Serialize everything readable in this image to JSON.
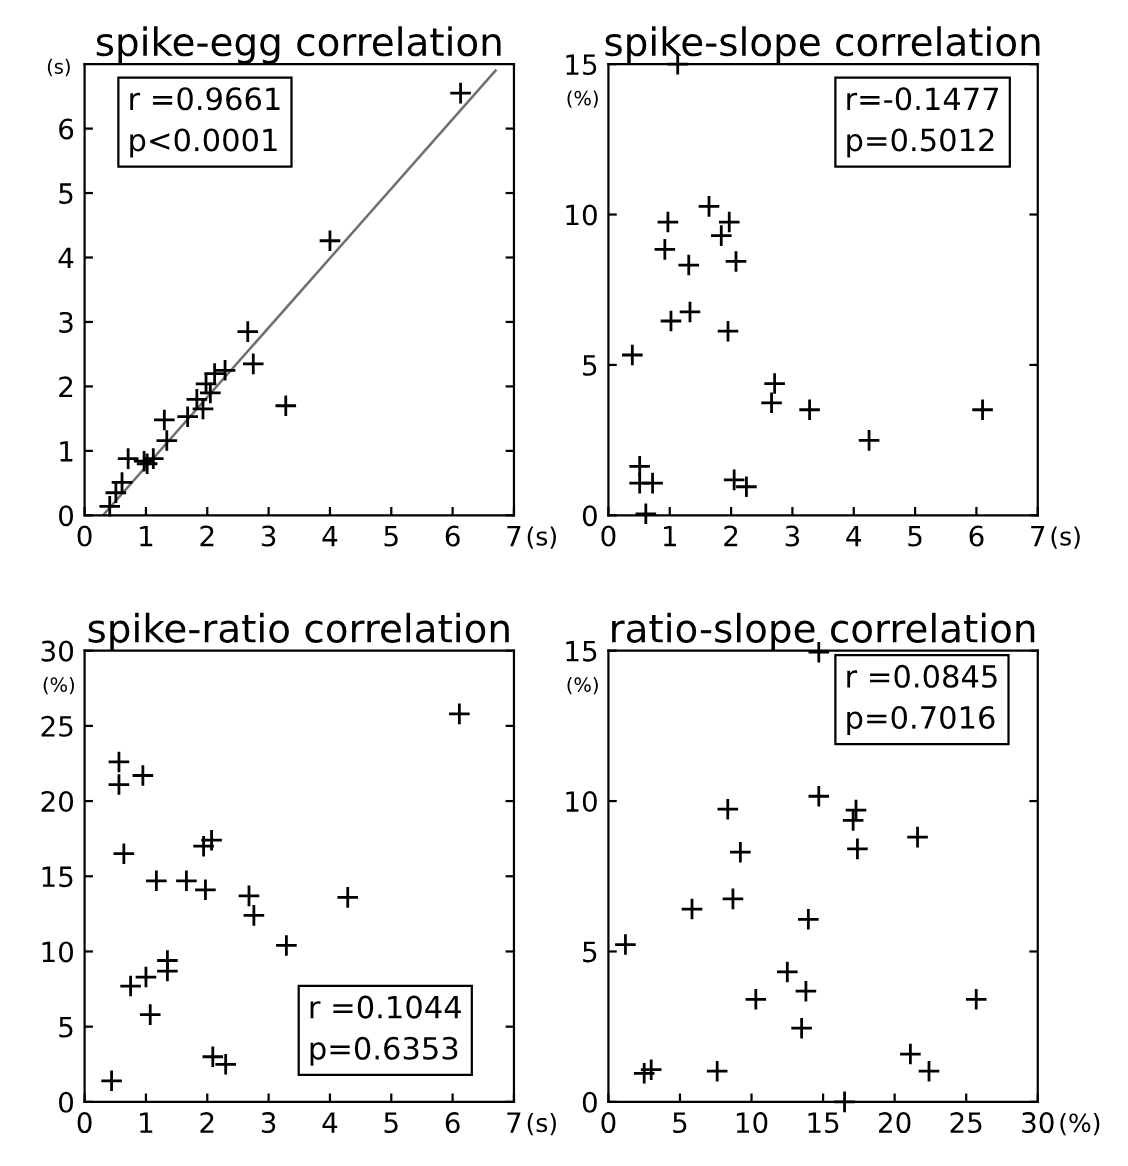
{
  "chart_data": [
    {
      "type": "scatter",
      "title": "spike-egg correlation",
      "ylabel": "(s)",
      "xlabel": "(s)",
      "marker": "cross",
      "grid": false,
      "xlim": [
        0,
        7
      ],
      "xticks": [
        0,
        1,
        2,
        3,
        4,
        5,
        6,
        7
      ],
      "ylim": [
        0,
        7
      ],
      "yticks": [
        0,
        1,
        2,
        3,
        4,
        5,
        6
      ],
      "annotations": [
        "r =0.9661\np<0.0001"
      ],
      "series": [
        {
          "color": "#000000",
          "x": [
            0.41,
            0.51,
            0.61,
            0.71,
            0.97,
            1.02,
            1.12,
            1.3,
            1.34,
            1.68,
            1.83,
            1.93,
            1.98,
            2.05,
            2.12,
            2.29,
            2.66,
            2.75,
            3.28,
            4.0,
            6.13
          ],
          "values": [
            0.14,
            0.35,
            0.51,
            0.88,
            0.84,
            0.8,
            0.88,
            1.48,
            1.16,
            1.53,
            1.8,
            1.65,
            2.04,
            1.9,
            2.2,
            2.25,
            2.85,
            2.35,
            1.7,
            4.26,
            6.55
          ]
        },
        {
          "type": "line",
          "color": "#707070",
          "marker": "none",
          "x": [
            0.3,
            6.7
          ],
          "values": [
            0,
            6.9
          ]
        }
      ]
    },
    {
      "type": "scatter",
      "title": "spike-slope correlation",
      "ylabel": "(%)",
      "xlabel": "(s)",
      "marker": "cross",
      "grid": false,
      "xlim": [
        0,
        7
      ],
      "xticks": [
        0,
        1,
        2,
        3,
        4,
        5,
        6,
        7
      ],
      "ylim": [
        0,
        15
      ],
      "yticks": [
        0,
        5,
        10,
        15
      ],
      "annotations": [
        "r=-0.1477\np=0.5012"
      ],
      "series": [
        {
          "color": "#000000",
          "x": [
            1.13,
            0.39,
            0.51,
            0.51,
            0.72,
            0.61,
            0.97,
            0.92,
            1.31,
            1.02,
            1.33,
            1.64,
            1.84,
            1.97,
            2.08,
            1.95,
            2.05,
            2.25,
            2.66,
            2.71,
            3.28,
            4.25,
            6.1
          ],
          "values": [
            15.0,
            5.33,
            1.63,
            1.07,
            1.07,
            0.05,
            9.75,
            8.84,
            8.32,
            6.46,
            6.76,
            10.27,
            9.3,
            9.75,
            8.44,
            6.12,
            1.18,
            0.95,
            3.74,
            4.38,
            3.51,
            2.49,
            3.51
          ]
        }
      ]
    },
    {
      "type": "scatter",
      "title": "spike-ratio correlation",
      "ylabel": "(%)",
      "xlabel": "(s)",
      "marker": "cross",
      "grid": false,
      "xlim": [
        0,
        7
      ],
      "xticks": [
        0,
        1,
        2,
        3,
        4,
        5,
        6,
        7
      ],
      "ylim": [
        0,
        30
      ],
      "yticks": [
        0,
        5,
        10,
        15,
        20,
        25,
        30
      ],
      "annotations": [
        "r =0.1044\np=0.6353"
      ],
      "series": [
        {
          "color": "#000000",
          "x": [
            0.44,
            0.56,
            0.56,
            0.95,
            0.64,
            1.17,
            0.75,
            1.0,
            1.07,
            1.35,
            1.35,
            1.66,
            1.97,
            1.94,
            2.07,
            2.09,
            2.3,
            2.68,
            2.76,
            3.29,
            4.29,
            6.11
          ],
          "values": [
            1.4,
            22.6,
            21.1,
            21.7,
            16.5,
            14.7,
            7.7,
            8.3,
            5.8,
            9.4,
            8.7,
            14.7,
            14.1,
            17.0,
            17.4,
            3.0,
            2.5,
            13.7,
            12.4,
            10.4,
            13.6,
            25.8
          ]
        }
      ]
    },
    {
      "type": "scatter",
      "title": "ratio-slope correlation",
      "ylabel": "(%)",
      "xlabel": "(%)",
      "marker": "cross",
      "grid": false,
      "xlim": [
        0,
        30
      ],
      "xticks": [
        0,
        5,
        10,
        15,
        20,
        25,
        30
      ],
      "ylim": [
        0,
        15
      ],
      "yticks": [
        0,
        5,
        10,
        15
      ],
      "annotations": [
        "r =0.0845\np=0.7016"
      ],
      "series": [
        {
          "color": "#000000",
          "x": [
            14.7,
            1.19,
            2.5,
            2.99,
            7.6,
            5.84,
            8.34,
            9.22,
            8.7,
            10.3,
            14.7,
            12.5,
            13.8,
            13.97,
            13.5,
            16.5,
            17.1,
            17.3,
            17.4,
            21.6,
            21.1,
            22.4,
            25.7
          ],
          "values": [
            14.95,
            5.23,
            0.95,
            1.07,
            1.02,
            6.41,
            9.73,
            8.3,
            6.75,
            3.41,
            10.16,
            4.32,
            3.68,
            6.07,
            2.45,
            0.0,
            9.36,
            9.7,
            8.41,
            8.8,
            1.59,
            1.02,
            3.41
          ]
        }
      ]
    }
  ]
}
